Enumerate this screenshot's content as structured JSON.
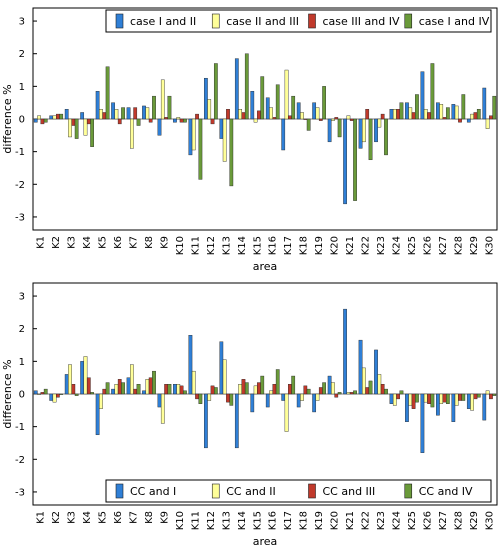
{
  "chart_data": [
    {
      "type": "bar",
      "xlabel": "area",
      "ylabel": "difference %",
      "ylim": [
        -3.4,
        3.4
      ],
      "yticks": [
        3,
        2,
        1,
        0,
        -1,
        -2,
        -3
      ],
      "grid": false,
      "legend_position": "top-right",
      "categories": [
        "K1",
        "K2",
        "K3",
        "K4",
        "K5",
        "K6",
        "K7",
        "K8",
        "K9",
        "K10",
        "K11",
        "K12",
        "K13",
        "K14",
        "K15",
        "K16",
        "K17",
        "K18",
        "K19",
        "K20",
        "K21",
        "K22",
        "K23",
        "K24",
        "K25",
        "K26",
        "K27",
        "K28",
        "K29",
        "K30"
      ],
      "series": [
        {
          "name": "case I and II",
          "color": "#2f7fd6",
          "values": [
            -0.1,
            0.1,
            0.3,
            0.2,
            0.85,
            0.5,
            0.35,
            0.4,
            -0.5,
            -0.1,
            -1.1,
            1.25,
            -0.6,
            1.85,
            0.85,
            0.65,
            -0.95,
            0.5,
            0.5,
            -0.7,
            -2.6,
            -0.9,
            -0.7,
            0.3,
            0.5,
            1.45,
            0.5,
            0.45,
            -0.1,
            0.95
          ]
        },
        {
          "name": "case II and III",
          "color": "#ffff99",
          "values": [
            0.1,
            0.1,
            -0.55,
            -0.5,
            0.3,
            0.3,
            -0.9,
            0.35,
            1.2,
            0.05,
            -0.95,
            0.6,
            -1.3,
            0.3,
            -0.1,
            0.35,
            1.5,
            0.2,
            0.35,
            -0.05,
            0.1,
            -0.7,
            -0.25,
            0.3,
            0.35,
            0.3,
            0.45,
            0.4,
            0.15,
            -0.3
          ]
        },
        {
          "name": "case III and IV",
          "color": "#c0392b",
          "values": [
            -0.15,
            0.15,
            -0.2,
            -0.15,
            0.2,
            -0.15,
            0.35,
            -0.1,
            0.05,
            -0.1,
            0.15,
            -0.15,
            0.3,
            0.2,
            0.25,
            0.05,
            0.1,
            0.0,
            -0.05,
            0.05,
            -0.05,
            0.3,
            0.15,
            0.3,
            0.2,
            0.2,
            0.05,
            -0.1,
            0.2,
            0.1
          ]
        },
        {
          "name": "case I and IV",
          "color": "#6a9a3a",
          "values": [
            -0.1,
            0.15,
            -0.6,
            -0.85,
            1.6,
            0.35,
            -0.2,
            0.7,
            0.7,
            -0.1,
            -1.85,
            1.7,
            -2.05,
            2.0,
            1.3,
            1.05,
            0.7,
            -0.35,
            1.0,
            -0.55,
            -2.5,
            -1.25,
            -1.1,
            0.5,
            0.75,
            1.7,
            0.35,
            0.75,
            0.3,
            0.7
          ]
        }
      ]
    },
    {
      "type": "bar",
      "xlabel": "area",
      "ylabel": "difference %",
      "ylim": [
        -3.4,
        3.4
      ],
      "yticks": [
        3,
        2,
        1,
        0,
        -1,
        -2,
        -3
      ],
      "grid": false,
      "legend_position": "bottom-right",
      "categories": [
        "K1",
        "K2",
        "K3",
        "K4",
        "K5",
        "K6",
        "K7",
        "K8",
        "K9",
        "K10",
        "K11",
        "K12",
        "K13",
        "K14",
        "K15",
        "K16",
        "K17",
        "K18",
        "K19",
        "K20",
        "K21",
        "K22",
        "K23",
        "K24",
        "K25",
        "K26",
        "K27",
        "K28",
        "K29",
        "K30"
      ],
      "series": [
        {
          "name": "CC and I",
          "color": "#2f7fd6",
          "values": [
            0.1,
            -0.2,
            0.6,
            1.0,
            -1.25,
            0.15,
            0.5,
            0.1,
            -0.4,
            0.3,
            1.8,
            -1.65,
            1.6,
            -1.65,
            -0.55,
            -0.4,
            -0.2,
            -0.4,
            -0.55,
            0.55,
            2.6,
            1.65,
            1.35,
            -0.3,
            -0.85,
            -1.8,
            -0.65,
            -0.85,
            -0.45,
            -0.8
          ]
        },
        {
          "name": "CC and II",
          "color": "#ffff99",
          "values": [
            0.0,
            -0.25,
            0.9,
            1.15,
            -0.45,
            0.3,
            0.9,
            0.45,
            -0.9,
            0.3,
            0.7,
            -0.2,
            1.05,
            0.3,
            0.25,
            0.1,
            -1.15,
            -0.2,
            -0.2,
            0.35,
            0.05,
            0.8,
            0.6,
            -0.35,
            -0.35,
            -0.25,
            -0.3,
            -0.35,
            -0.5,
            0.1
          ]
        },
        {
          "name": "CC and III",
          "color": "#c0392b",
          "values": [
            0.05,
            -0.1,
            0.3,
            0.5,
            0.15,
            0.45,
            0.15,
            0.5,
            0.3,
            0.25,
            -0.15,
            0.25,
            -0.25,
            0.45,
            0.35,
            0.3,
            0.3,
            0.25,
            0.2,
            -0.1,
            0.05,
            0.2,
            0.3,
            -0.15,
            -0.45,
            -0.3,
            -0.25,
            -0.2,
            -0.15,
            -0.15
          ]
        },
        {
          "name": "CC and IV",
          "color": "#6a9a3a",
          "values": [
            0.15,
            0.0,
            -0.05,
            0.05,
            0.35,
            0.35,
            0.3,
            0.7,
            0.3,
            0.1,
            -0.3,
            0.2,
            -0.35,
            0.35,
            0.55,
            0.75,
            0.55,
            0.15,
            0.35,
            0.05,
            0.1,
            0.4,
            0.15,
            0.1,
            -0.25,
            -0.4,
            -0.3,
            -0.2,
            -0.1,
            -0.05
          ]
        }
      ]
    }
  ]
}
